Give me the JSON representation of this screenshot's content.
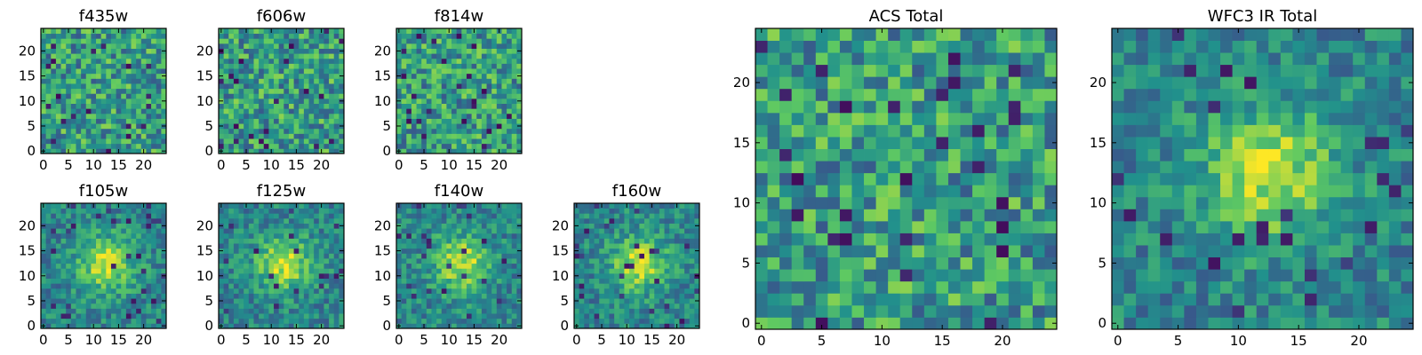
{
  "figure": {
    "colormap": "viridis",
    "colormap_stops": [
      "#440154",
      "#3b528b",
      "#21918c",
      "#5ec962",
      "#fde725"
    ]
  },
  "chart_data": [
    {
      "type": "heatmap",
      "title": "f435w",
      "grid_size": 25,
      "xlim": [
        0,
        24
      ],
      "ylim": [
        0,
        24
      ],
      "x_ticks": [
        "0",
        "5",
        "10",
        "15",
        "20"
      ],
      "y_ticks": [
        "0",
        "5",
        "10",
        "15",
        "20"
      ],
      "pattern": "noise",
      "colorbar": false
    },
    {
      "type": "heatmap",
      "title": "f606w",
      "grid_size": 25,
      "xlim": [
        0,
        24
      ],
      "ylim": [
        0,
        24
      ],
      "x_ticks": [
        "0",
        "5",
        "10",
        "15",
        "20"
      ],
      "y_ticks": [
        "0",
        "5",
        "10",
        "15",
        "20"
      ],
      "pattern": "noise",
      "colorbar": false
    },
    {
      "type": "heatmap",
      "title": "f814w",
      "grid_size": 25,
      "xlim": [
        0,
        24
      ],
      "ylim": [
        0,
        24
      ],
      "x_ticks": [
        "0",
        "5",
        "10",
        "15",
        "20"
      ],
      "y_ticks": [
        "0",
        "5",
        "10",
        "15",
        "20"
      ],
      "pattern": "noise",
      "colorbar": false
    },
    {
      "type": "heatmap",
      "title": "f105w",
      "grid_size": 25,
      "xlim": [
        0,
        24
      ],
      "ylim": [
        0,
        24
      ],
      "x_ticks": [
        "0",
        "5",
        "10",
        "15",
        "20"
      ],
      "y_ticks": [
        "0",
        "5",
        "10",
        "15",
        "20"
      ],
      "pattern": "central source",
      "colorbar": false
    },
    {
      "type": "heatmap",
      "title": "f125w",
      "grid_size": 25,
      "xlim": [
        0,
        24
      ],
      "ylim": [
        0,
        24
      ],
      "x_ticks": [
        "0",
        "5",
        "10",
        "15",
        "20"
      ],
      "y_ticks": [
        "0",
        "5",
        "10",
        "15",
        "20"
      ],
      "pattern": "central source",
      "colorbar": false
    },
    {
      "type": "heatmap",
      "title": "f140w",
      "grid_size": 25,
      "xlim": [
        0,
        24
      ],
      "ylim": [
        0,
        24
      ],
      "x_ticks": [
        "0",
        "5",
        "10",
        "15",
        "20"
      ],
      "y_ticks": [
        "0",
        "5",
        "10",
        "15",
        "20"
      ],
      "pattern": "central source",
      "colorbar": false
    },
    {
      "type": "heatmap",
      "title": "f160w",
      "grid_size": 25,
      "xlim": [
        0,
        24
      ],
      "ylim": [
        0,
        24
      ],
      "x_ticks": [
        "0",
        "5",
        "10",
        "15",
        "20"
      ],
      "y_ticks": [
        "0",
        "5",
        "10",
        "15",
        "20"
      ],
      "pattern": "central source",
      "colorbar": false
    },
    {
      "type": "heatmap",
      "title": "ACS Total",
      "grid_size": 25,
      "xlim": [
        0,
        24
      ],
      "ylim": [
        0,
        24
      ],
      "x_ticks": [
        "0",
        "5",
        "10",
        "15",
        "20"
      ],
      "y_ticks": [
        "0",
        "5",
        "10",
        "15",
        "20"
      ],
      "pattern": "noise",
      "colorbar": false
    },
    {
      "type": "heatmap",
      "title": "WFC3 IR Total",
      "grid_size": 25,
      "xlim": [
        0,
        24
      ],
      "ylim": [
        0,
        24
      ],
      "x_ticks": [
        "0",
        "5",
        "10",
        "15",
        "20"
      ],
      "y_ticks": [
        "0",
        "5",
        "10",
        "15",
        "20"
      ],
      "pattern": "central source",
      "colorbar": false
    }
  ]
}
